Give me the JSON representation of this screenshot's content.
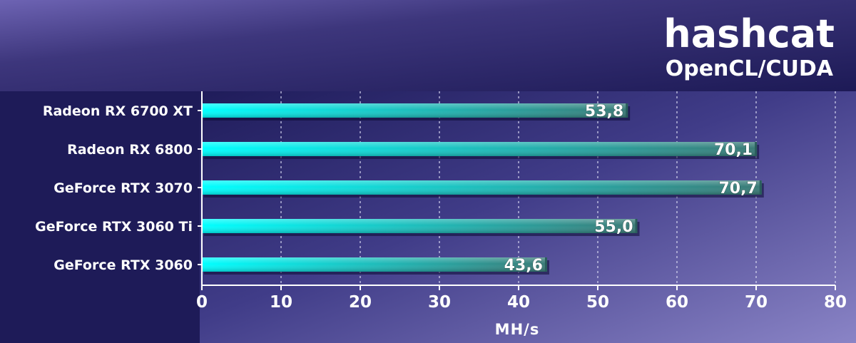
{
  "chart_data": {
    "type": "bar",
    "orientation": "horizontal",
    "title": "hashcat",
    "subtitle": "OpenCL/CUDA",
    "xlabel": "MH/s",
    "ylabel": "",
    "xlim": [
      0,
      80
    ],
    "xticks": [
      "0",
      "10",
      "20",
      "30",
      "40",
      "50",
      "60",
      "70",
      "80"
    ],
    "grid": true,
    "categories": [
      "Radeon RX 6700 XT",
      "Radeon RX 6800",
      "GeForce RTX 3070",
      "GeForce RTX 3060 Ti",
      "GeForce RTX 3060"
    ],
    "values": [
      53.8,
      70.1,
      70.7,
      55.0,
      43.6
    ],
    "value_labels": [
      "53,8",
      "70,1",
      "70,7",
      "55,0",
      "43,6"
    ],
    "colors": {
      "bar_start": "#00ffff",
      "bar_end": "#3a7a76",
      "background": "#1c1a55",
      "plot_bg": "#48458f",
      "text": "#ffffff"
    }
  }
}
